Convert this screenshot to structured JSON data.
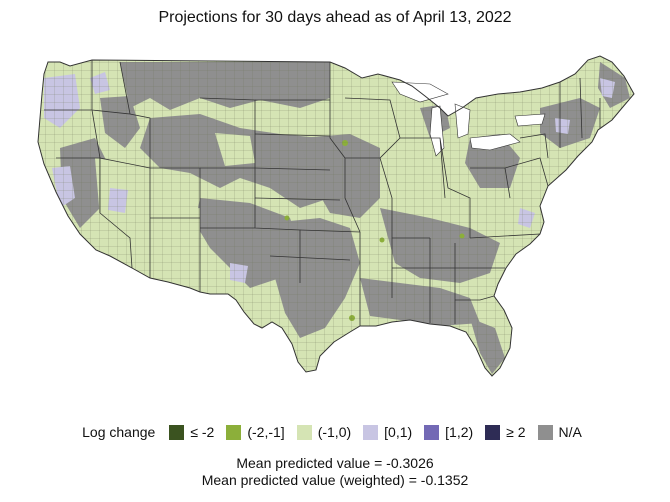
{
  "title": "Projections for 30 days ahead as of April 13, 2022",
  "legend": {
    "title": "Log change",
    "items": [
      {
        "label": "≤ -2",
        "color": "#3b5320"
      },
      {
        "label": "(-2,-1]",
        "color": "#8caf3a"
      },
      {
        "label": "(-1,0)",
        "color": "#d5e4b4"
      },
      {
        "label": "[0,1)",
        "color": "#c8c5e3"
      },
      {
        "label": "[1,2)",
        "color": "#7369b5"
      },
      {
        "label": "≥ 2",
        "color": "#2e2c55"
      },
      {
        "label": "N/A",
        "color": "#8f8f8f"
      }
    ]
  },
  "stats": {
    "mean": "Mean predicted value = -0.3026",
    "mean_weighted": "Mean predicted value (weighted) = -0.1352"
  },
  "map": {
    "region": "Contiguous United States",
    "unit": "county",
    "colors": {
      "dominant_decrease": "#d5e4b4",
      "na": "#8f8f8f",
      "increase": "#c8c5e3",
      "strong_decrease": "#8caf3a",
      "border": "#333333"
    }
  }
}
